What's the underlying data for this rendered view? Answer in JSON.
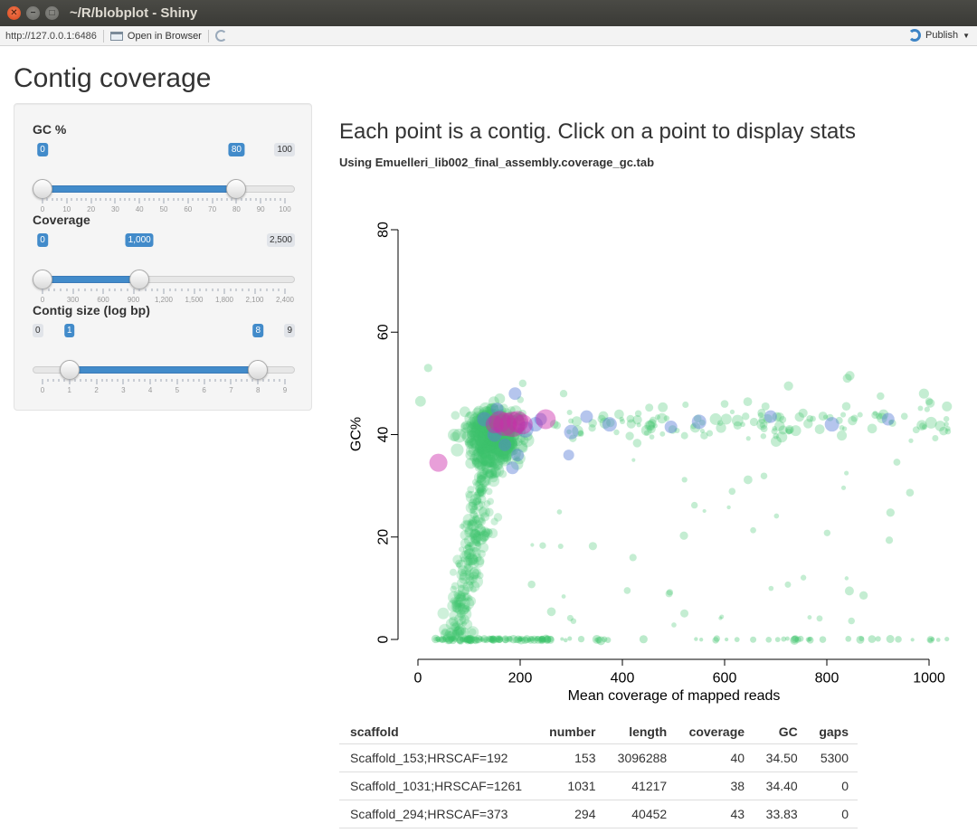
{
  "window": {
    "title": "~/R/blobplot - Shiny"
  },
  "toolbar": {
    "url": "http://127.0.0.1:6486",
    "open_browser": "Open in Browser",
    "publish": "Publish"
  },
  "page": {
    "title": "Contig coverage"
  },
  "sliders": [
    {
      "label": "GC %",
      "min": 0,
      "max": 100,
      "min_label": "0",
      "max_label": "100",
      "low": 0,
      "high": 80,
      "low_label": "0",
      "high_label": "80",
      "ticks": [
        "0",
        "10",
        "20",
        "30",
        "40",
        "50",
        "60",
        "70",
        "80",
        "90",
        "100"
      ]
    },
    {
      "label": "Coverage",
      "min": 0,
      "max": 2500,
      "min_label": "0",
      "max_label": "2,500",
      "low": 0,
      "high": 1000,
      "low_label": "0",
      "high_label": "1,000",
      "ticks": [
        "0",
        "300",
        "600",
        "900",
        "1,200",
        "1,500",
        "1,800",
        "2,100",
        "2,400"
      ]
    },
    {
      "label": "Contig size (log bp)",
      "min": 0,
      "max": 9,
      "min_label": "0",
      "max_label": "9",
      "low": 1,
      "high": 8,
      "low_label": "1",
      "high_label": "8",
      "ticks": [
        "0",
        "1",
        "2",
        "3",
        "4",
        "5",
        "6",
        "7",
        "8",
        "9"
      ]
    }
  ],
  "main": {
    "heading": "Each point is a contig. Click on a point to display stats",
    "subheading": "Using Emuelleri_lib002_final_assembly.coverage_gc.tab"
  },
  "chart_data": {
    "type": "scatter",
    "xlabel": "Mean coverage of mapped reads",
    "ylabel": "GC%",
    "xlim": [
      0,
      1040
    ],
    "ylim": [
      0,
      80
    ],
    "xticks": [
      0,
      200,
      400,
      600,
      800,
      1000
    ],
    "yticks": [
      0,
      20,
      40,
      60,
      80
    ],
    "colors": {
      "green": "#3cc36a",
      "blue": "#5b7fd6",
      "magenta": "#cc2aaa"
    },
    "points_magenta": [
      [
        40,
        34.5,
        10
      ],
      [
        170,
        42,
        13
      ],
      [
        160,
        42.5,
        12
      ],
      [
        185,
        42,
        14
      ],
      [
        195,
        42.5,
        12
      ],
      [
        250,
        43,
        11
      ],
      [
        150,
        42,
        10
      ],
      [
        205,
        42,
        11
      ]
    ],
    "points_blue": [
      [
        190,
        48,
        7
      ],
      [
        130,
        43,
        8
      ],
      [
        155,
        45,
        7
      ],
      [
        210,
        41,
        9
      ],
      [
        230,
        42,
        8
      ],
      [
        300,
        40.5,
        8
      ],
      [
        330,
        43.5,
        7
      ],
      [
        375,
        42,
        8
      ],
      [
        495,
        41.5,
        7
      ],
      [
        550,
        42.5,
        8
      ],
      [
        690,
        43.5,
        7
      ],
      [
        810,
        42,
        8
      ],
      [
        920,
        43,
        7
      ],
      [
        170,
        38,
        7
      ],
      [
        185,
        33.5,
        7
      ],
      [
        295,
        36,
        6
      ],
      [
        195,
        36,
        7
      ],
      [
        240,
        43,
        7
      ],
      [
        150,
        40,
        8
      ]
    ],
    "green_params": {
      "seed": 42,
      "core_count": 520,
      "tail_count": 260,
      "zero_count": 150,
      "scatter_count": 45,
      "high_count": 14
    }
  },
  "table": {
    "headers": [
      "scaffold",
      "number",
      "length",
      "coverage",
      "GC",
      "gaps"
    ],
    "rows": [
      [
        "Scaffold_153;HRSCAF=192",
        "153",
        "3096288",
        "40",
        "34.50",
        "5300"
      ],
      [
        "Scaffold_1031;HRSCAF=1261",
        "1031",
        "41217",
        "38",
        "34.40",
        "0"
      ],
      [
        "Scaffold_294;HRSCAF=373",
        "294",
        "40452",
        "43",
        "33.83",
        "0"
      ]
    ]
  }
}
